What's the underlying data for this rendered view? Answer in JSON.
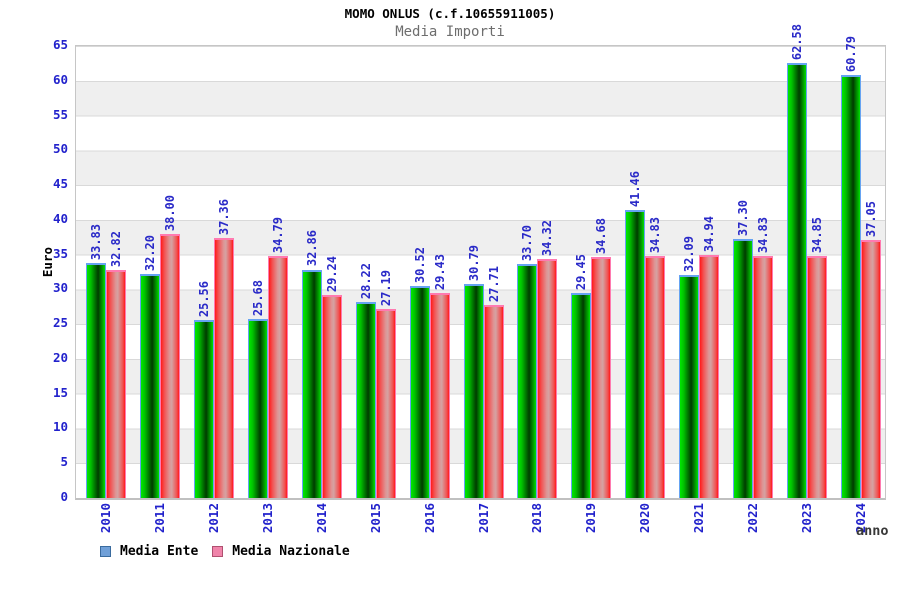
{
  "chart_data": {
    "type": "bar",
    "title": "MOMO ONLUS (c.f.10655911005)",
    "subtitle": "Media Importi",
    "xlabel": "anno",
    "ylabel": "Euro",
    "ylim": [
      0,
      65
    ],
    "y_ticks": [
      0,
      5,
      10,
      15,
      20,
      25,
      30,
      35,
      40,
      45,
      50,
      55,
      60,
      65
    ],
    "grid": "alternating horizontal bands with gridlines every 5",
    "legend_position": "bottom-left",
    "value_label_format": "two decimals, rotated 90deg above each bar",
    "categories": [
      "2010",
      "2011",
      "2012",
      "2013",
      "2014",
      "2015",
      "2016",
      "2017",
      "2018",
      "2019",
      "2020",
      "2021",
      "2022",
      "2023",
      "2024"
    ],
    "series": [
      {
        "name": "Media Ente",
        "bar_style": "green-cylinder",
        "values": [
          33.83,
          32.2,
          25.56,
          25.68,
          32.86,
          28.22,
          30.52,
          30.79,
          33.7,
          29.45,
          41.46,
          32.09,
          37.3,
          62.58,
          60.79
        ]
      },
      {
        "name": "Media Nazionale",
        "bar_style": "red-cylinder",
        "values": [
          32.82,
          38.0,
          37.36,
          34.79,
          29.24,
          27.19,
          29.43,
          27.71,
          34.32,
          34.68,
          34.83,
          34.94,
          34.83,
          34.85,
          37.05
        ]
      }
    ]
  },
  "colors": {
    "bar_green_main": "#00cc00",
    "bar_green_dark": "#003c00",
    "bar_green_border": "#66a3f2",
    "bar_red_main": "#ff1a1a",
    "bar_red_light": "#d5a2a2",
    "bar_red_border": "#ff7ab0",
    "legend_ente_fill": "#70a0d8",
    "legend_ente_border": "#3a6b9e",
    "legend_nazionale_fill": "#f084aa",
    "legend_nazionale_border": "#b05070",
    "axis_text": "#2222cc",
    "value_text": "#2a2ac8",
    "subtitle_text": "#6e6e6e",
    "band_gray": "#efefef",
    "gridline": "#d9d9d9"
  }
}
